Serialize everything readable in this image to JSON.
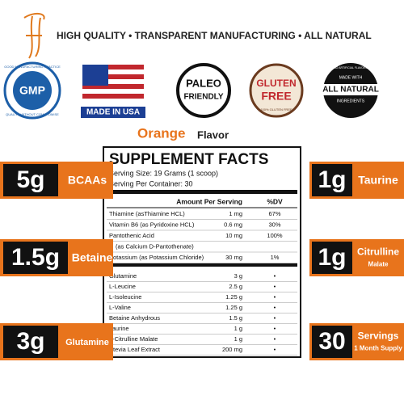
{
  "header": {
    "tagline": "HIGH QUALITY • TRANSPARENT MANUFACTURING • ALL NATURAL"
  },
  "badges": {
    "gmp": {
      "top": "GOOD MANUFACTURING PRACTICE",
      "main": "GMP",
      "bottom": "QUALITY WITHOUT COMPROMISE"
    },
    "usa": {
      "main": "MADE IN USA"
    },
    "paleo": {
      "line1": "PALEO",
      "line2": "FRIENDLY"
    },
    "gluten": {
      "line1": "GLUTEN",
      "line2": "FREE",
      "bottom": "100% GLUTEN FREE"
    },
    "natural": {
      "top": "MADE WITH",
      "main": "ALL NATURAL",
      "sub": "INGREDIENTS",
      "bottom": "NO ARTIFICIAL FLAVORS"
    }
  },
  "flavor": {
    "name": "Orange",
    "label": "Flavor"
  },
  "left_boxes": [
    {
      "amount": "5g",
      "label": "BCAAs"
    },
    {
      "amount": "1.5g",
      "label": "Betaine"
    },
    {
      "amount": "3g",
      "label": "Glutamine"
    }
  ],
  "right_boxes": [
    {
      "amount": "1g",
      "label": [
        "Taurine"
      ]
    },
    {
      "amount": "1g",
      "label": [
        "Citrulline",
        "Malate"
      ]
    },
    {
      "amount": "30",
      "label": [
        "Servings",
        "1 Month Supply"
      ]
    }
  ],
  "facts": {
    "title": "SUPPLEMENT FACTS",
    "serving_size": "Serving Size: 19 Grams (1 scoop)",
    "servings": "Serving Per Container: 30",
    "amount_header": "Amount Per Serving",
    "dv_header": "%DV",
    "vitamins": [
      [
        "Thiamine (asThiamine HCL)",
        "1 mg",
        "67%"
      ],
      [
        "Vitamin B6 (as Pyridoxine HCL)",
        "0.6 mg",
        "30%"
      ],
      [
        "Pantothenic Acid",
        "10 mg",
        "100%"
      ],
      [
        "(as Calcium D-Pantothenate)",
        null,
        null
      ],
      [
        "Potassium (as Potassium Chloride)",
        "30 mg",
        "1%"
      ]
    ],
    "ingredients": [
      [
        "Glutamine",
        "3 g",
        "•"
      ],
      [
        "L-Leucine",
        "2.5 g",
        "•"
      ],
      [
        "L-Isoleucine",
        "1.25 g",
        "•"
      ],
      [
        "L-Valine",
        "1.25 g",
        "•"
      ],
      [
        "Betaine Anhydrous",
        "1.5 g",
        "•"
      ],
      [
        "Taurine",
        "1 g",
        "•"
      ],
      [
        "L-Citrulline Malate",
        "1 g",
        "•"
      ],
      [
        "Stevia Leaf Extract",
        "200 mg",
        "•"
      ]
    ]
  }
}
